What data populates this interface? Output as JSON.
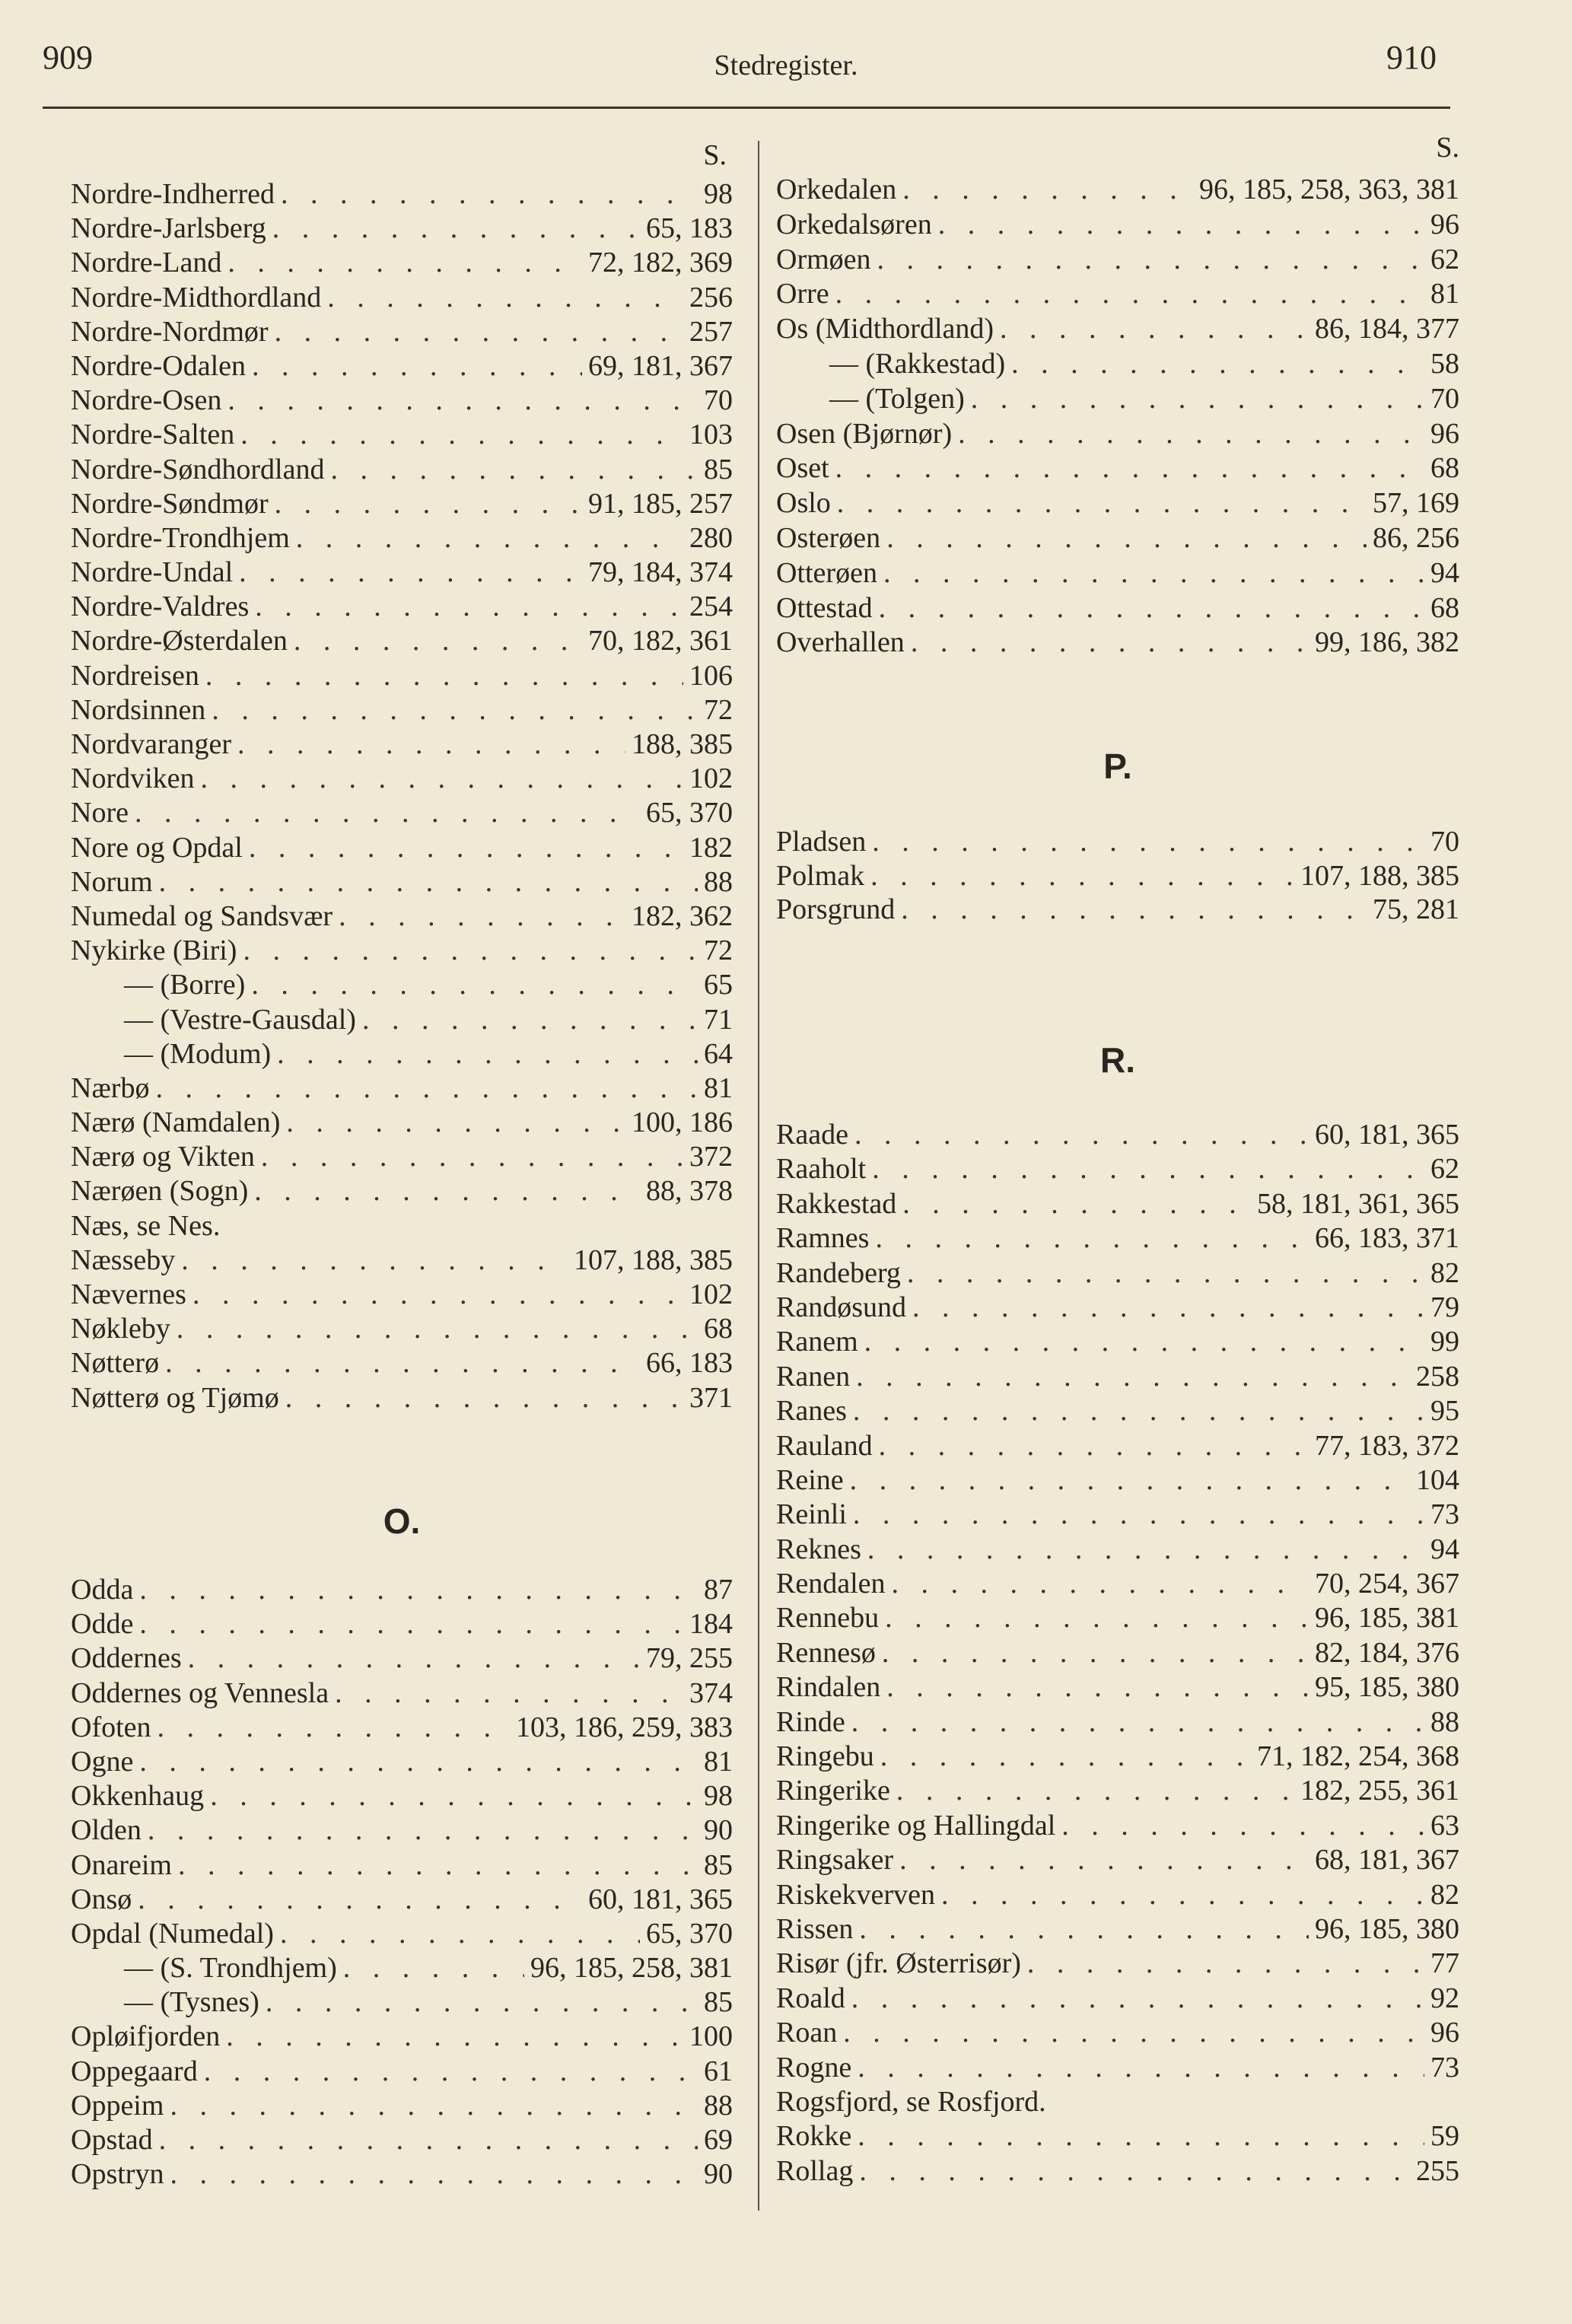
{
  "header": {
    "page_left": "909",
    "title": "Stedregister.",
    "page_right": "910"
  },
  "left": {
    "s_label": "S.",
    "n_entries": [
      {
        "name": "Nordre-Indherred",
        "pages": "98"
      },
      {
        "name": "Nordre-Jarlsberg",
        "pages": "65, 183"
      },
      {
        "name": "Nordre-Land",
        "pages": "72, 182, 369"
      },
      {
        "name": "Nordre-Midthordland",
        "pages": "256"
      },
      {
        "name": "Nordre-Nordmør",
        "pages": "257"
      },
      {
        "name": "Nordre-Odalen",
        "pages": "69, 181, 367"
      },
      {
        "name": "Nordre-Osen",
        "pages": "70"
      },
      {
        "name": "Nordre-Salten",
        "pages": "103"
      },
      {
        "name": "Nordre-Søndhordland",
        "pages": "85"
      },
      {
        "name": "Nordre-Søndmør",
        "pages": "91, 185, 257"
      },
      {
        "name": "Nordre-Trondhjem",
        "pages": "280"
      },
      {
        "name": "Nordre-Undal",
        "pages": "79, 184, 374"
      },
      {
        "name": "Nordre-Valdres",
        "pages": "254"
      },
      {
        "name": "Nordre-Østerdalen",
        "pages": "70, 182, 361"
      },
      {
        "name": "Nordreisen",
        "pages": "106"
      },
      {
        "name": "Nordsinnen",
        "pages": "72"
      },
      {
        "name": "Nordvaranger",
        "pages": "188, 385"
      },
      {
        "name": "Nordviken",
        "pages": "102"
      },
      {
        "name": "Nore",
        "pages": "65, 370"
      },
      {
        "name": "Nore og Opdal",
        "pages": "182"
      },
      {
        "name": "Norum",
        "pages": "88"
      },
      {
        "name": "Numedal og Sandsvær",
        "pages": "182, 362"
      },
      {
        "name": "Nykirke (Biri)",
        "pages": "72"
      },
      {
        "name": "— (Borre)",
        "pages": "65",
        "indent": true
      },
      {
        "name": "— (Vestre-Gausdal)",
        "pages": "71",
        "indent": true
      },
      {
        "name": "— (Modum)",
        "pages": "64",
        "indent": true
      },
      {
        "name": "Nærbø",
        "pages": "81"
      },
      {
        "name": "Nærø (Namdalen)",
        "pages": "100, 186"
      },
      {
        "name": "Nærø og Vikten",
        "pages": "372"
      },
      {
        "name": "Nærøen (Sogn)",
        "pages": "88, 378"
      },
      {
        "name": "Næs, se Nes.",
        "pages": "",
        "noleader": true
      },
      {
        "name": "Næsseby",
        "pages": "107, 188, 385"
      },
      {
        "name": "Nævernes",
        "pages": "102"
      },
      {
        "name": "Nøkleby",
        "pages": "68"
      },
      {
        "name": "Nøtterø",
        "pages": "66, 183"
      },
      {
        "name": "Nøtterø og Tjømø",
        "pages": "371"
      }
    ],
    "o_heading": "O.",
    "o_entries": [
      {
        "name": "Odda",
        "pages": "87"
      },
      {
        "name": "Odde",
        "pages": "184"
      },
      {
        "name": "Oddernes",
        "pages": "79, 255"
      },
      {
        "name": "Oddernes og Vennesla",
        "pages": "374"
      },
      {
        "name": "Ofoten",
        "pages": "103, 186, 259, 383"
      },
      {
        "name": "Ogne",
        "pages": "81"
      },
      {
        "name": "Okkenhaug",
        "pages": "98"
      },
      {
        "name": "Olden",
        "pages": "90"
      },
      {
        "name": "Onareim",
        "pages": "85"
      },
      {
        "name": "Onsø",
        "pages": "60, 181, 365"
      },
      {
        "name": "Opdal (Numedal)",
        "pages": "65, 370"
      },
      {
        "name": "— (S. Trondhjem)",
        "pages": "96, 185, 258, 381",
        "indent": true
      },
      {
        "name": "— (Tysnes)",
        "pages": "85",
        "indent": true
      },
      {
        "name": "Opløifjorden",
        "pages": "100"
      },
      {
        "name": "Oppegaard",
        "pages": "61"
      },
      {
        "name": "Oppeim",
        "pages": "88"
      },
      {
        "name": "Opstad",
        "pages": "69"
      },
      {
        "name": "Opstryn",
        "pages": "90"
      }
    ]
  },
  "right": {
    "s_label": "S.",
    "o_entries": [
      {
        "name": "Orkedalen",
        "pages": "96, 185, 258, 363, 381"
      },
      {
        "name": "Orkedalsøren",
        "pages": "96"
      },
      {
        "name": "Ormøen",
        "pages": "62"
      },
      {
        "name": "Orre",
        "pages": "81"
      },
      {
        "name": "Os (Midthordland)",
        "pages": "86, 184, 377"
      },
      {
        "name": "— (Rakkestad)",
        "pages": "58",
        "indent": true
      },
      {
        "name": "— (Tolgen)",
        "pages": "70",
        "indent": true
      },
      {
        "name": "Osen (Bjørnør)",
        "pages": "96"
      },
      {
        "name": "Oset",
        "pages": "68"
      },
      {
        "name": "Oslo",
        "pages": "57, 169"
      },
      {
        "name": "Osterøen",
        "pages": "86, 256"
      },
      {
        "name": "Otterøen",
        "pages": "94"
      },
      {
        "name": "Ottestad",
        "pages": "68"
      },
      {
        "name": "Overhallen",
        "pages": "99, 186, 382"
      }
    ],
    "p_heading": "P.",
    "p_entries": [
      {
        "name": "Pladsen",
        "pages": "70"
      },
      {
        "name": "Polmak",
        "pages": "107, 188, 385"
      },
      {
        "name": "Porsgrund",
        "pages": "75, 281"
      }
    ],
    "r_heading": "R.",
    "r_entries": [
      {
        "name": "Raade",
        "pages": "60, 181, 365"
      },
      {
        "name": "Raaholt",
        "pages": "62"
      },
      {
        "name": "Rakkestad",
        "pages": "58, 181, 361, 365"
      },
      {
        "name": "Ramnes",
        "pages": "66, 183, 371"
      },
      {
        "name": "Randeberg",
        "pages": "82"
      },
      {
        "name": "Randøsund",
        "pages": "79"
      },
      {
        "name": "Ranem",
        "pages": "99"
      },
      {
        "name": "Ranen",
        "pages": "258"
      },
      {
        "name": "Ranes",
        "pages": "95"
      },
      {
        "name": "Rauland",
        "pages": "77, 183, 372"
      },
      {
        "name": "Reine",
        "pages": "104"
      },
      {
        "name": "Reinli",
        "pages": "73"
      },
      {
        "name": "Reknes",
        "pages": "94"
      },
      {
        "name": "Rendalen",
        "pages": "70, 254, 367"
      },
      {
        "name": "Rennebu",
        "pages": "96, 185, 381"
      },
      {
        "name": "Rennesø",
        "pages": "82, 184, 376"
      },
      {
        "name": "Rindalen",
        "pages": "95, 185, 380"
      },
      {
        "name": "Rinde",
        "pages": "88"
      },
      {
        "name": "Ringebu",
        "pages": "71, 182, 254, 368"
      },
      {
        "name": "Ringerike",
        "pages": "182, 255, 361"
      },
      {
        "name": "Ringerike og Hallingdal",
        "pages": "63"
      },
      {
        "name": "Ringsaker",
        "pages": "68, 181, 367"
      },
      {
        "name": "Riskekverven",
        "pages": "82"
      },
      {
        "name": "Rissen",
        "pages": "96, 185, 380"
      },
      {
        "name": "Risør (jfr. Østerrisør)",
        "pages": "77"
      },
      {
        "name": "Roald",
        "pages": "92"
      },
      {
        "name": "Roan",
        "pages": "96"
      },
      {
        "name": "Rogne",
        "pages": "73"
      },
      {
        "name": "Rogsfjord, se Rosfjord.",
        "pages": "",
        "noleader": true
      },
      {
        "name": "Rokke",
        "pages": "59"
      },
      {
        "name": "Rollag",
        "pages": "255"
      }
    ]
  }
}
